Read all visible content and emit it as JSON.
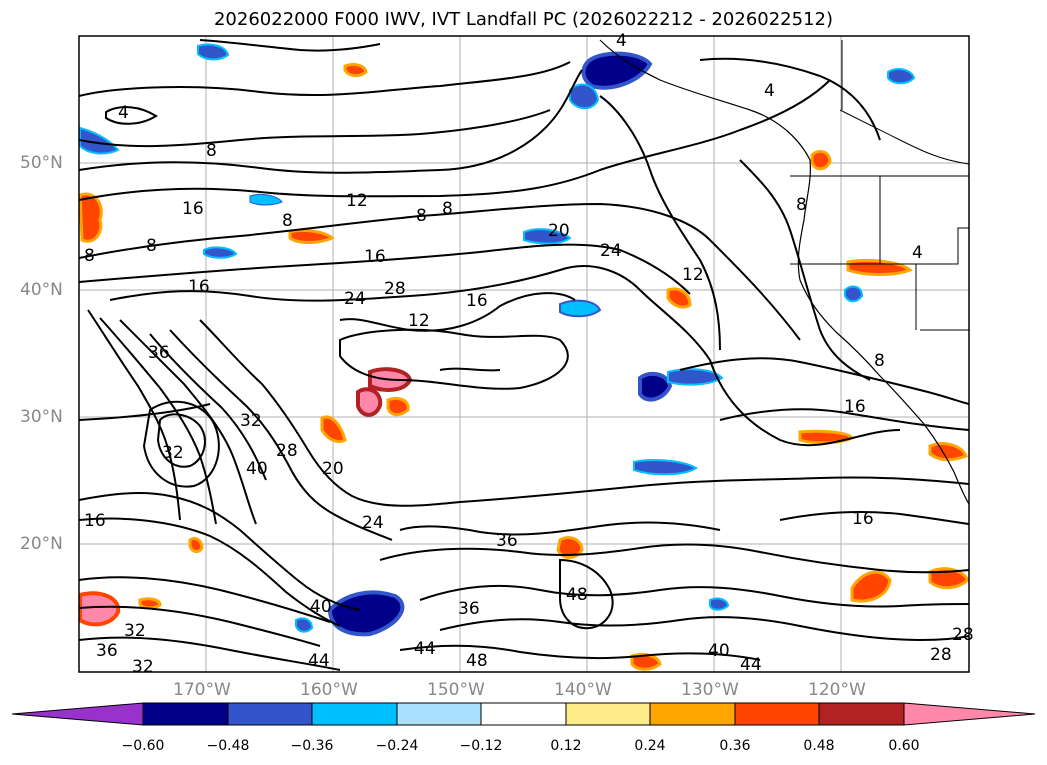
{
  "title": "2026022000 F000 IWV, IVT Landfall PC (2026022212 - 2026022512)",
  "lat_labels": [
    "50°N",
    "40°N",
    "30°N",
    "20°N"
  ],
  "lon_labels": [
    "170°W",
    "160°W",
    "150°W",
    "140°W",
    "130°W",
    "120°W"
  ],
  "contour_labels": [
    "4",
    "8",
    "12",
    "16",
    "20",
    "24",
    "28",
    "32",
    "36",
    "40",
    "44",
    "48"
  ],
  "colorbar": {
    "ticks": [
      "−0.60",
      "−0.48",
      "−0.36",
      "−0.24",
      "−0.12",
      "0.12",
      "0.24",
      "0.36",
      "0.48",
      "0.60"
    ],
    "colors": [
      "#9932cc",
      "#00008b",
      "#3355cc",
      "#00bfff",
      "#aadfff",
      "#ffffff",
      "#ffeb8a",
      "#ffa500",
      "#ff4500",
      "#b22222",
      "#ff88aa"
    ]
  }
}
